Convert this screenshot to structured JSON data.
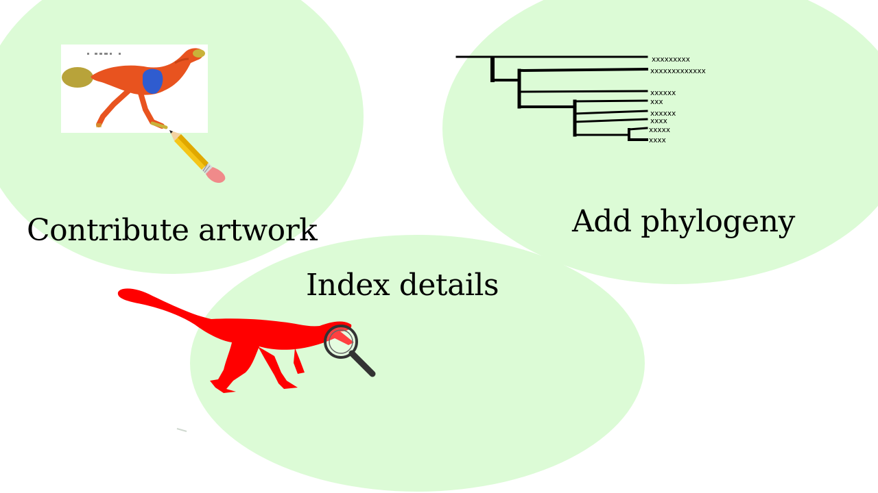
{
  "sections": {
    "artwork": {
      "label": "Contribute artwork",
      "icon": "pencil-icon"
    },
    "phylogeny": {
      "label": "Add phylogeny",
      "icon": "phylogenetic-tree-icon",
      "taxa": [
        "xxxxxxxxx",
        "xxxxxxxxxxxxx",
        "xxxxxx",
        "xxx",
        "xxxxxx",
        "xxxx",
        "xxxxx",
        "xxxx"
      ]
    },
    "index": {
      "label": "Index details",
      "icon": "magnifying-glass-icon"
    }
  },
  "colors": {
    "blob": "#dcfbd6",
    "silhouette": "#ff0000",
    "illustration_body": "#e8531f",
    "illustration_wing": "#2f5ccf"
  }
}
